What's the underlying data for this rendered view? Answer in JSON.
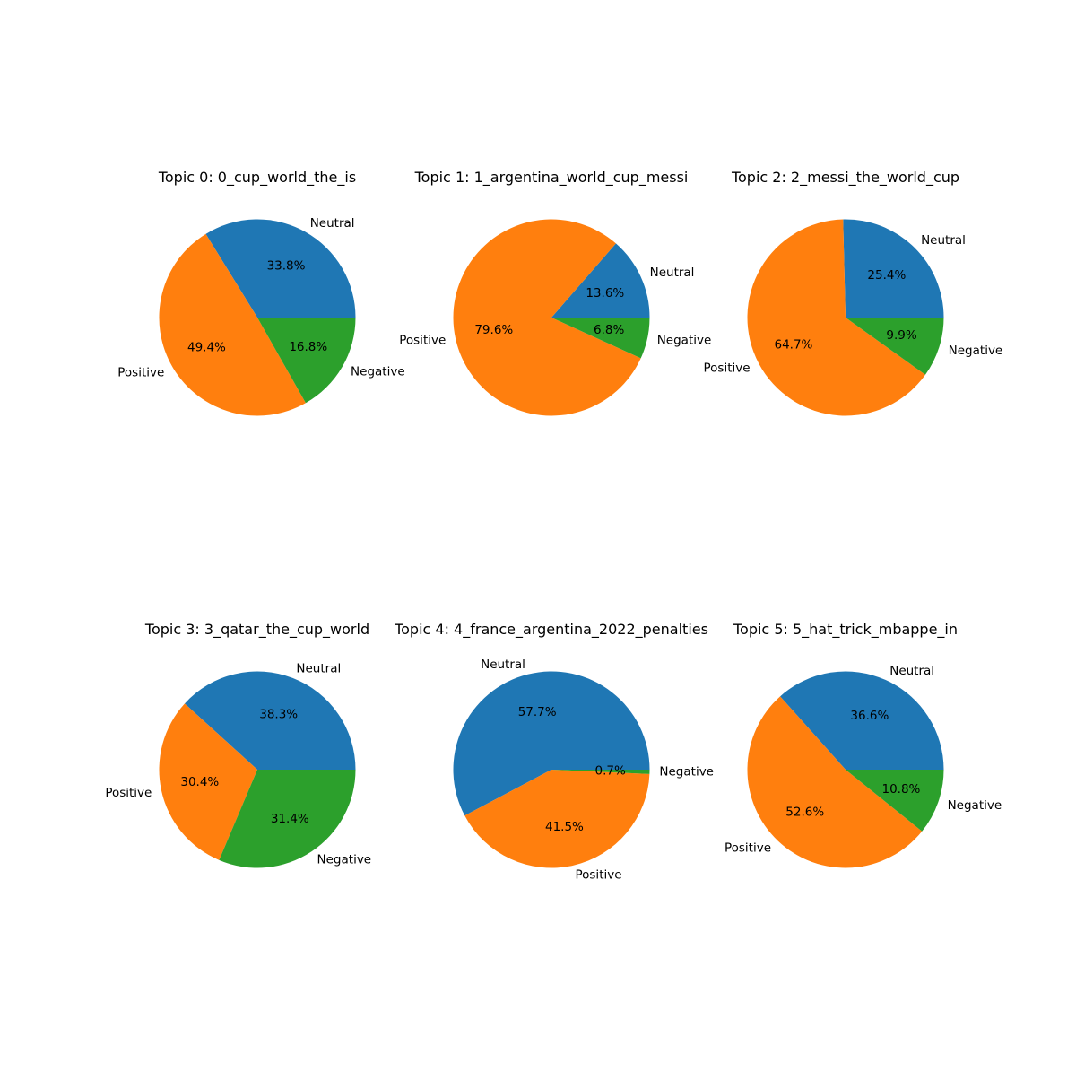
{
  "chart_data": [
    {
      "type": "pie",
      "title": "Topic 0: 0_cup_world_the_is",
      "slices": [
        {
          "label": "Neutral",
          "value": 33.8,
          "pct_label": "33.8%",
          "color": "#1f77b4"
        },
        {
          "label": "Positive",
          "value": 49.4,
          "pct_label": "49.4%",
          "color": "#ff7f0e"
        },
        {
          "label": "Negative",
          "value": 16.8,
          "pct_label": "16.8%",
          "color": "#2ca02c"
        }
      ]
    },
    {
      "type": "pie",
      "title": "Topic 1: 1_argentina_world_cup_messi",
      "slices": [
        {
          "label": "Neutral",
          "value": 13.6,
          "pct_label": "13.6%",
          "color": "#1f77b4"
        },
        {
          "label": "Positive",
          "value": 79.6,
          "pct_label": "79.6%",
          "color": "#ff7f0e"
        },
        {
          "label": "Negative",
          "value": 6.8,
          "pct_label": "6.8%",
          "color": "#2ca02c"
        }
      ]
    },
    {
      "type": "pie",
      "title": "Topic 2: 2_messi_the_world_cup",
      "slices": [
        {
          "label": "Neutral",
          "value": 25.4,
          "pct_label": "25.4%",
          "color": "#1f77b4"
        },
        {
          "label": "Positive",
          "value": 64.7,
          "pct_label": "64.7%",
          "color": "#ff7f0e"
        },
        {
          "label": "Negative",
          "value": 9.9,
          "pct_label": "9.9%",
          "color": "#2ca02c"
        }
      ]
    },
    {
      "type": "pie",
      "title": "Topic 3: 3_qatar_the_cup_world",
      "slices": [
        {
          "label": "Neutral",
          "value": 38.3,
          "pct_label": "38.3%",
          "color": "#1f77b4"
        },
        {
          "label": "Positive",
          "value": 30.4,
          "pct_label": "30.4%",
          "color": "#ff7f0e"
        },
        {
          "label": "Negative",
          "value": 31.4,
          "pct_label": "31.4%",
          "color": "#2ca02c"
        }
      ]
    },
    {
      "type": "pie",
      "title": "Topic 4: 4_france_argentina_2022_penalties",
      "slices": [
        {
          "label": "Neutral",
          "value": 57.7,
          "pct_label": "57.7%",
          "color": "#1f77b4"
        },
        {
          "label": "Positive",
          "value": 41.5,
          "pct_label": "41.5%",
          "color": "#ff7f0e"
        },
        {
          "label": "Negative",
          "value": 0.7,
          "pct_label": "0.7%",
          "color": "#2ca02c"
        }
      ]
    },
    {
      "type": "pie",
      "title": "Topic 5: 5_hat_trick_mbappe_in",
      "slices": [
        {
          "label": "Neutral",
          "value": 36.6,
          "pct_label": "36.6%",
          "color": "#1f77b4"
        },
        {
          "label": "Positive",
          "value": 52.6,
          "pct_label": "52.6%",
          "color": "#ff7f0e"
        },
        {
          "label": "Negative",
          "value": 10.8,
          "pct_label": "10.8%",
          "color": "#2ca02c"
        }
      ]
    }
  ]
}
